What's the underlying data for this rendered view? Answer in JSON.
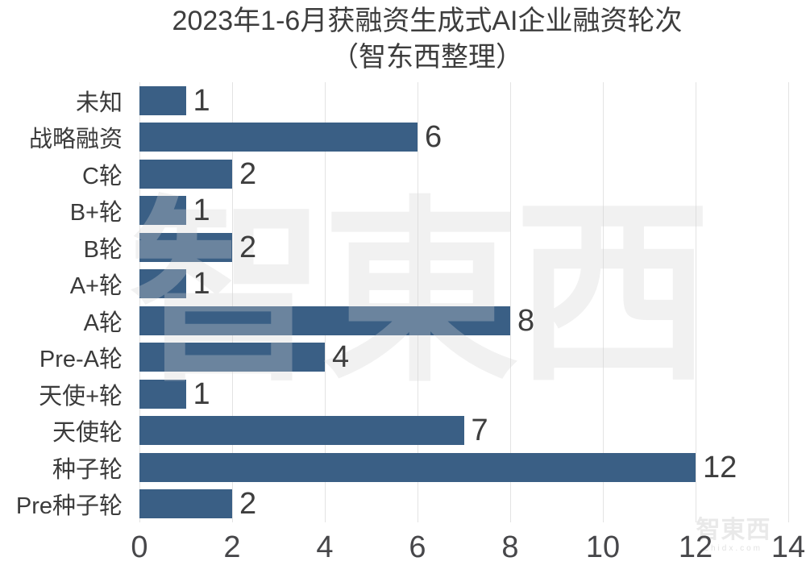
{
  "title": {
    "line1": "2023年1-6月获融资生成式AI企业融资轮次",
    "line2": "（智东西整理）"
  },
  "watermark": {
    "center_text": "智東西",
    "logo_text": "智東西",
    "logo_url_text": "zhidx.com"
  },
  "colors": {
    "bar": "#3a5f85",
    "gridline": "#e3e3e3",
    "title_text": "#3d3d3d",
    "label_text": "#3b3b3b",
    "value_text": "#3e3e3e",
    "tick_text": "#47474a",
    "background": "#ffffff"
  },
  "chart_data": {
    "type": "bar",
    "orientation": "horizontal",
    "title": "2023年1-6月获融资生成式AI企业融资轮次（智东西整理）",
    "categories": [
      "未知",
      "战略融资",
      "C轮",
      "B+轮",
      "B轮",
      "A+轮",
      "A轮",
      "Pre-A轮",
      "天使+轮",
      "天使轮",
      "种子轮",
      "Pre种子轮"
    ],
    "values": [
      1,
      6,
      2,
      1,
      2,
      1,
      8,
      4,
      1,
      7,
      12,
      2
    ],
    "xlabel": "",
    "ylabel": "",
    "xlim": [
      0,
      14
    ],
    "xticks": [
      0,
      2,
      4,
      6,
      8,
      10,
      12,
      14
    ],
    "grid": "vertical",
    "legend": "none",
    "bar_color": "#3a5f85",
    "data_labels": true
  }
}
